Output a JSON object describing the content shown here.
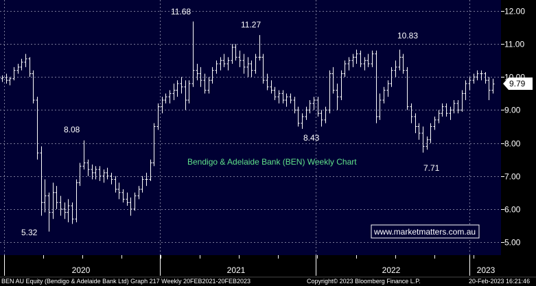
{
  "chart_data": {
    "type": "ohlc",
    "title": "Bendigo & Adelaide Bank (BEN) Weekly Chart",
    "watermark": "www.marketmatters.com.au",
    "ylim": [
      4.7,
      12.2
    ],
    "y_ticks": [
      "12.00",
      "11.00",
      "10.00",
      "9.00",
      "8.00",
      "7.00",
      "6.00",
      "5.00"
    ],
    "x_ticks": [
      "2020",
      "2021",
      "2022",
      "2023"
    ],
    "last_price": "9.79",
    "annotations": [
      "11.68",
      "11.27",
      "10.83",
      "8.08",
      "8.43",
      "7.71",
      "5.32"
    ],
    "footer_left": "BEN AU Equity (Bendigo & Adelaide Bank Ltd) Graph 217  Weekly 20FEB2021-20FEB2023",
    "footer_mid": "Copyright© 2023 Bloomberg Finance L.P.",
    "footer_right": "20-Feb-2023 16:21:46",
    "colors": {
      "background": "#000033",
      "bars": "#ffffff",
      "grid": "#7a7a9a",
      "title": "#5fe08a",
      "axis_panel": "#000000"
    },
    "series": [
      {
        "values": [
          [
            9.95,
            10.05,
            9.85,
            9.98
          ],
          [
            9.98,
            10.1,
            9.8,
            9.9
          ],
          [
            9.9,
            10.0,
            9.75,
            9.95
          ],
          [
            9.95,
            10.3,
            9.9,
            10.2
          ],
          [
            10.2,
            10.4,
            10.1,
            10.3
          ],
          [
            10.3,
            10.55,
            10.2,
            10.45
          ],
          [
            10.45,
            10.7,
            10.3,
            10.55
          ],
          [
            10.55,
            10.6,
            10.0,
            10.1
          ],
          [
            10.1,
            10.2,
            9.2,
            9.3
          ],
          [
            9.3,
            9.4,
            7.5,
            7.7
          ],
          [
            7.7,
            7.9,
            5.8,
            6.2
          ],
          [
            6.2,
            6.9,
            5.9,
            6.4
          ],
          [
            6.4,
            6.5,
            5.32,
            5.9
          ],
          [
            5.9,
            6.8,
            5.7,
            6.5
          ],
          [
            6.5,
            6.7,
            6.0,
            6.2
          ],
          [
            6.2,
            6.4,
            5.8,
            6.0
          ],
          [
            6.0,
            6.2,
            5.7,
            5.9
          ],
          [
            5.9,
            6.3,
            5.6,
            6.1
          ],
          [
            6.1,
            6.2,
            5.55,
            5.7
          ],
          [
            5.7,
            6.9,
            5.6,
            6.8
          ],
          [
            6.8,
            7.4,
            6.7,
            7.3
          ],
          [
            7.3,
            8.08,
            7.2,
            7.4
          ],
          [
            7.4,
            7.5,
            7.0,
            7.2
          ],
          [
            7.2,
            7.35,
            6.9,
            7.1
          ],
          [
            7.1,
            7.3,
            6.9,
            7.2
          ],
          [
            7.2,
            7.3,
            6.85,
            7.0
          ],
          [
            7.0,
            7.2,
            6.8,
            7.1
          ],
          [
            7.1,
            7.25,
            6.9,
            7.0
          ],
          [
            7.0,
            7.1,
            6.75,
            6.9
          ],
          [
            6.9,
            7.0,
            6.5,
            6.6
          ],
          [
            6.6,
            6.8,
            6.3,
            6.5
          ],
          [
            6.5,
            6.6,
            6.2,
            6.3
          ],
          [
            6.3,
            6.5,
            6.1,
            6.2
          ],
          [
            6.2,
            6.35,
            5.8,
            6.0
          ],
          [
            6.0,
            6.5,
            5.95,
            6.4
          ],
          [
            6.4,
            6.7,
            6.3,
            6.6
          ],
          [
            6.6,
            7.0,
            6.5,
            6.9
          ],
          [
            6.9,
            7.1,
            6.7,
            6.9
          ],
          [
            6.9,
            7.5,
            6.85,
            7.4
          ],
          [
            7.4,
            8.6,
            7.3,
            8.5
          ],
          [
            8.5,
            9.2,
            8.4,
            9.1
          ],
          [
            9.1,
            9.4,
            8.9,
            9.3
          ],
          [
            9.3,
            9.5,
            9.2,
            9.4
          ],
          [
            9.4,
            9.6,
            9.2,
            9.5
          ],
          [
            9.5,
            9.8,
            9.3,
            9.6
          ],
          [
            9.6,
            9.9,
            9.4,
            9.8
          ],
          [
            9.8,
            10.0,
            9.5,
            9.7
          ],
          [
            9.7,
            9.9,
            9.0,
            9.3
          ],
          [
            9.3,
            9.9,
            9.2,
            9.8
          ],
          [
            9.8,
            11.68,
            9.7,
            10.2
          ],
          [
            10.2,
            10.4,
            9.9,
            10.1
          ],
          [
            10.1,
            10.3,
            9.7,
            9.9
          ],
          [
            9.9,
            10.1,
            9.5,
            9.6
          ],
          [
            9.6,
            10.0,
            9.5,
            9.9
          ],
          [
            9.9,
            10.3,
            9.8,
            10.2
          ],
          [
            10.2,
            10.5,
            10.1,
            10.4
          ],
          [
            10.4,
            10.6,
            10.2,
            10.5
          ],
          [
            10.5,
            10.7,
            10.3,
            10.4
          ],
          [
            10.4,
            10.6,
            10.2,
            10.5
          ],
          [
            10.5,
            11.0,
            10.4,
            10.9
          ],
          [
            10.9,
            11.0,
            10.5,
            10.6
          ],
          [
            10.6,
            10.8,
            10.3,
            10.5
          ],
          [
            10.5,
            10.7,
            10.1,
            10.3
          ],
          [
            10.3,
            10.6,
            10.0,
            10.4
          ],
          [
            10.4,
            10.5,
            10.0,
            10.2
          ],
          [
            10.2,
            10.7,
            10.1,
            10.6
          ],
          [
            10.6,
            11.27,
            10.5,
            10.6
          ],
          [
            10.6,
            10.7,
            9.8,
            9.9
          ],
          [
            9.9,
            10.1,
            9.6,
            9.7
          ],
          [
            9.7,
            9.9,
            9.5,
            9.6
          ],
          [
            9.6,
            9.7,
            9.3,
            9.4
          ],
          [
            9.4,
            9.6,
            9.2,
            9.5
          ],
          [
            9.5,
            9.6,
            9.2,
            9.3
          ],
          [
            9.3,
            9.5,
            9.1,
            9.4
          ],
          [
            9.4,
            9.5,
            9.2,
            9.3
          ],
          [
            9.3,
            9.4,
            8.9,
            9.0
          ],
          [
            9.0,
            9.1,
            8.5,
            8.6
          ],
          [
            8.6,
            8.9,
            8.43,
            8.8
          ],
          [
            8.8,
            9.1,
            8.7,
            9.0
          ],
          [
            9.0,
            9.3,
            8.9,
            9.2
          ],
          [
            9.2,
            9.4,
            9.0,
            9.3
          ],
          [
            9.3,
            9.4,
            8.8,
            8.9
          ],
          [
            8.9,
            9.0,
            8.5,
            8.7
          ],
          [
            8.7,
            9.1,
            8.6,
            9.0
          ],
          [
            9.0,
            10.2,
            8.9,
            10.1
          ],
          [
            10.1,
            10.3,
            9.5,
            9.6
          ],
          [
            9.6,
            9.8,
            9.0,
            9.4
          ],
          [
            9.4,
            10.2,
            9.3,
            10.1
          ],
          [
            10.1,
            10.5,
            10.0,
            10.4
          ],
          [
            10.4,
            10.6,
            10.2,
            10.5
          ],
          [
            10.5,
            10.7,
            10.3,
            10.6
          ],
          [
            10.6,
            10.83,
            10.4,
            10.7
          ],
          [
            10.7,
            10.8,
            10.3,
            10.4
          ],
          [
            10.4,
            10.6,
            10.2,
            10.5
          ],
          [
            10.5,
            10.7,
            10.3,
            10.4
          ],
          [
            10.4,
            10.8,
            10.3,
            10.7
          ],
          [
            10.7,
            10.8,
            8.6,
            8.8
          ],
          [
            8.8,
            9.5,
            8.7,
            9.3
          ],
          [
            9.3,
            9.7,
            9.2,
            9.6
          ],
          [
            9.6,
            9.9,
            9.4,
            9.8
          ],
          [
            9.8,
            10.3,
            9.7,
            10.2
          ],
          [
            10.2,
            10.5,
            10.0,
            10.3
          ],
          [
            10.3,
            10.83,
            10.2,
            10.6
          ],
          [
            10.6,
            10.7,
            10.1,
            10.2
          ],
          [
            10.2,
            10.3,
            9.0,
            9.1
          ],
          [
            9.1,
            9.2,
            8.6,
            8.8
          ],
          [
            8.8,
            8.9,
            8.3,
            8.5
          ],
          [
            8.5,
            8.6,
            8.1,
            8.3
          ],
          [
            8.3,
            8.5,
            7.71,
            7.9
          ],
          [
            7.9,
            8.2,
            7.8,
            8.1
          ],
          [
            8.1,
            8.6,
            8.0,
            8.5
          ],
          [
            8.5,
            8.8,
            8.4,
            8.7
          ],
          [
            8.7,
            9.0,
            8.6,
            8.9
          ],
          [
            8.9,
            9.2,
            8.8,
            9.1
          ],
          [
            9.1,
            9.2,
            8.8,
            8.9
          ],
          [
            8.9,
            9.1,
            8.7,
            9.0
          ],
          [
            9.0,
            9.3,
            8.9,
            9.2
          ],
          [
            9.2,
            9.3,
            8.9,
            9.0
          ],
          [
            9.0,
            9.6,
            8.95,
            9.5
          ],
          [
            9.5,
            9.9,
            9.3,
            9.8
          ],
          [
            9.8,
            10.0,
            9.6,
            9.9
          ],
          [
            9.9,
            10.1,
            9.8,
            10.0
          ],
          [
            10.0,
            10.2,
            9.9,
            10.1
          ],
          [
            10.1,
            10.2,
            9.9,
            10.1
          ],
          [
            10.1,
            10.15,
            9.8,
            9.9
          ],
          [
            9.9,
            10.0,
            9.3,
            9.6
          ],
          [
            9.6,
            9.95,
            9.5,
            9.79
          ]
        ]
      }
    ]
  }
}
